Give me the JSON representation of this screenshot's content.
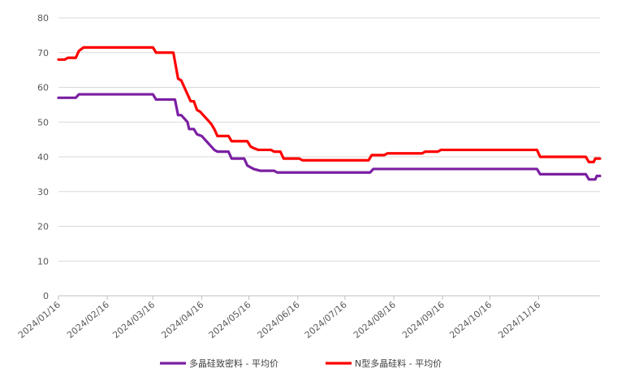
{
  "chart_data": {
    "type": "line",
    "title": "",
    "xlabel": "",
    "ylabel": "",
    "ylim": [
      0,
      80
    ],
    "yticks": [
      "0",
      "10",
      "20",
      "30",
      "40",
      "50",
      "60",
      "70",
      "80"
    ],
    "xticks": [
      "2024/01/16",
      "2024/02/16",
      "2024/03/16",
      "2024/04/16",
      "2024/05/16",
      "2024/06/16",
      "2024/07/16",
      "2024/08/16",
      "2024/09/16",
      "2024/10/16",
      "2024/11/16"
    ],
    "x_range": [
      "2024-01-16",
      "2024-12-25"
    ],
    "grid": "horizontal",
    "legend_position": "bottom",
    "series": [
      {
        "name": "多晶硅致密料 - 平均价",
        "color": "#7B1FA2",
        "points": [
          [
            "2024-01-16",
            57
          ],
          [
            "2024-01-27",
            57
          ],
          [
            "2024-01-29",
            58
          ],
          [
            "2024-03-16",
            58
          ],
          [
            "2024-03-18",
            56.5
          ],
          [
            "2024-03-30",
            56.5
          ],
          [
            "2024-04-01",
            52
          ],
          [
            "2024-04-03",
            52
          ],
          [
            "2024-04-05",
            51
          ],
          [
            "2024-04-07",
            50
          ],
          [
            "2024-04-08",
            48
          ],
          [
            "2024-04-11",
            48
          ],
          [
            "2024-04-13",
            46.5
          ],
          [
            "2024-04-16",
            46
          ],
          [
            "2024-04-19",
            44.5
          ],
          [
            "2024-04-21",
            43.5
          ],
          [
            "2024-04-24",
            42
          ],
          [
            "2024-04-26",
            41.5
          ],
          [
            "2024-05-03",
            41.5
          ],
          [
            "2024-05-05",
            39.5
          ],
          [
            "2024-05-13",
            39.5
          ],
          [
            "2024-05-15",
            37.5
          ],
          [
            "2024-05-17",
            37
          ],
          [
            "2024-05-19",
            36.5
          ],
          [
            "2024-05-23",
            36
          ],
          [
            "2024-06-01",
            36
          ],
          [
            "2024-06-03",
            35.5
          ],
          [
            "2024-08-01",
            35.5
          ],
          [
            "2024-08-03",
            36.5
          ],
          [
            "2024-11-15",
            36.5
          ],
          [
            "2024-11-17",
            35
          ],
          [
            "2024-12-16",
            35
          ],
          [
            "2024-12-18",
            33.5
          ],
          [
            "2024-12-22",
            33.5
          ],
          [
            "2024-12-23",
            34.5
          ],
          [
            "2024-12-25",
            34.5
          ]
        ]
      },
      {
        "name": "N型多晶硅料 - 平均价",
        "color": "#FF0000",
        "points": [
          [
            "2024-01-16",
            68
          ],
          [
            "2024-01-20",
            68
          ],
          [
            "2024-01-22",
            68.5
          ],
          [
            "2024-01-27",
            68.5
          ],
          [
            "2024-01-29",
            70.5
          ],
          [
            "2024-02-01",
            71.5
          ],
          [
            "2024-03-16",
            71.5
          ],
          [
            "2024-03-18",
            70
          ],
          [
            "2024-03-29",
            70
          ],
          [
            "2024-04-01",
            62.5
          ],
          [
            "2024-04-03",
            62
          ],
          [
            "2024-04-05",
            60
          ],
          [
            "2024-04-07",
            58
          ],
          [
            "2024-04-09",
            56
          ],
          [
            "2024-04-11",
            56
          ],
          [
            "2024-04-13",
            53.5
          ],
          [
            "2024-04-15",
            53
          ],
          [
            "2024-04-17",
            52
          ],
          [
            "2024-04-20",
            50.5
          ],
          [
            "2024-04-22",
            49.5
          ],
          [
            "2024-04-24",
            48
          ],
          [
            "2024-04-26",
            46
          ],
          [
            "2024-05-03",
            46
          ],
          [
            "2024-05-05",
            44.5
          ],
          [
            "2024-05-15",
            44.5
          ],
          [
            "2024-05-17",
            43
          ],
          [
            "2024-05-19",
            42.5
          ],
          [
            "2024-05-22",
            42
          ],
          [
            "2024-05-30",
            42
          ],
          [
            "2024-06-01",
            41.5
          ],
          [
            "2024-06-05",
            41.5
          ],
          [
            "2024-06-07",
            39.5
          ],
          [
            "2024-06-17",
            39.5
          ],
          [
            "2024-06-19",
            39
          ],
          [
            "2024-07-31",
            39
          ],
          [
            "2024-08-02",
            40.5
          ],
          [
            "2024-08-10",
            40.5
          ],
          [
            "2024-08-12",
            41
          ],
          [
            "2024-09-03",
            41
          ],
          [
            "2024-09-05",
            41.5
          ],
          [
            "2024-09-13",
            41.5
          ],
          [
            "2024-09-15",
            42
          ],
          [
            "2024-11-15",
            42
          ],
          [
            "2024-11-17",
            40
          ],
          [
            "2024-12-16",
            40
          ],
          [
            "2024-12-18",
            38.5
          ],
          [
            "2024-12-21",
            38.5
          ],
          [
            "2024-12-22",
            39.5
          ],
          [
            "2024-12-25",
            39.5
          ]
        ]
      }
    ]
  }
}
